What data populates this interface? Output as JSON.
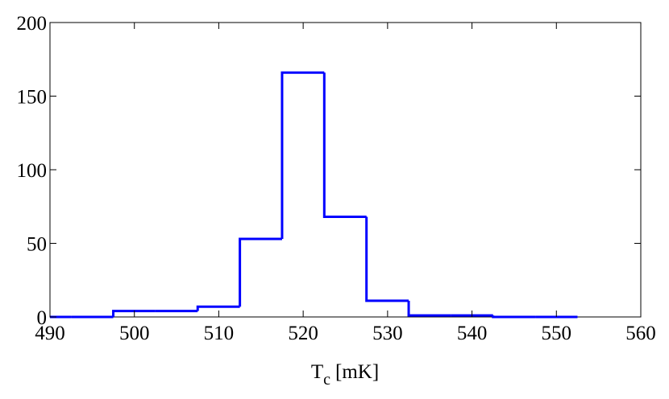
{
  "chart_data": {
    "type": "histogram",
    "bins": [
      487.5,
      492.5,
      497.5,
      502.5,
      507.5,
      512.5,
      517.5,
      522.5,
      527.5,
      532.5,
      537.5,
      542.5,
      547.5,
      552.5
    ],
    "values": [
      0,
      0,
      4,
      4,
      7,
      53,
      166,
      68,
      11,
      1,
      1,
      0,
      0
    ],
    "color": "#0000ff",
    "xlabel": [
      "T",
      "c",
      "[mK]"
    ],
    "xlim": [
      490,
      560
    ],
    "xticks": [
      490,
      500,
      510,
      520,
      530,
      540,
      550,
      560
    ],
    "ylim": [
      0,
      200
    ],
    "yticks": [
      0,
      50,
      100,
      150,
      200
    ]
  }
}
